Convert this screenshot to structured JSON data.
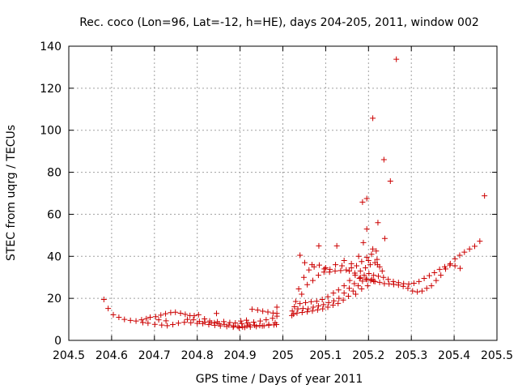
{
  "chart_data": {
    "type": "scatter",
    "title": "Rec. coco (Lon=96, Lat=-12, h=HE), days 204-205, 2011, window 002",
    "xlabel": "GPS time / Days of year 2011",
    "ylabel": "STEC from uqrg / TECUs",
    "xlim": [
      204.5,
      205.5
    ],
    "ylim": [
      0,
      140
    ],
    "xticks": [
      "204.5",
      "204.6",
      "204.7",
      "204.8",
      "204.9",
      "205",
      "205.1",
      "205.2",
      "205.3",
      "205.4",
      "205.5"
    ],
    "yticks": [
      "0",
      "20",
      "40",
      "60",
      "80",
      "100",
      "120",
      "140"
    ],
    "grid": true,
    "marker": "plus",
    "color": "#cc0000",
    "series": [
      {
        "points": [
          [
            204.582,
            19.5
          ],
          [
            204.592,
            15.2
          ],
          [
            204.604,
            12.2
          ],
          [
            204.617,
            11.0
          ],
          [
            204.63,
            10.0
          ],
          [
            204.644,
            9.5
          ],
          [
            204.657,
            9.2
          ],
          [
            204.67,
            9.8
          ],
          [
            204.681,
            10.3
          ],
          [
            204.69,
            11.0
          ],
          [
            204.703,
            11.3
          ],
          [
            204.715,
            12.0
          ],
          [
            204.726,
            12.7
          ],
          [
            204.738,
            13.2
          ],
          [
            204.749,
            13.4
          ],
          [
            204.761,
            12.9
          ],
          [
            204.772,
            12.4
          ],
          [
            204.783,
            11.8
          ],
          [
            204.793,
            11.7
          ],
          [
            204.803,
            12.2
          ],
          [
            204.817,
            10.2
          ],
          [
            204.829,
            9.2
          ],
          [
            204.84,
            8.4
          ],
          [
            204.851,
            7.9
          ],
          [
            204.863,
            7.6
          ],
          [
            204.874,
            7.3
          ],
          [
            204.885,
            6.9
          ],
          [
            204.895,
            6.6
          ],
          [
            204.906,
            6.4
          ],
          [
            204.916,
            6.9
          ],
          [
            204.923,
            7.4
          ],
          [
            204.934,
            7.2
          ],
          [
            204.946,
            7.1
          ],
          [
            204.956,
            7.0
          ],
          [
            204.967,
            7.2
          ],
          [
            204.979,
            7.4
          ],
          [
            204.985,
            7.5
          ],
          [
            204.673,
            8.5
          ],
          [
            204.685,
            8.2
          ],
          [
            204.701,
            7.6
          ],
          [
            204.717,
            7.3
          ],
          [
            204.73,
            7.0
          ],
          [
            204.743,
            7.5
          ],
          [
            204.756,
            8.2
          ],
          [
            204.77,
            8.6
          ],
          [
            204.785,
            8.4
          ],
          [
            204.8,
            8.1
          ],
          [
            204.813,
            8.0
          ],
          [
            204.827,
            7.5
          ],
          [
            204.841,
            7.2
          ],
          [
            204.854,
            6.9
          ],
          [
            204.869,
            6.6
          ],
          [
            204.884,
            6.3
          ],
          [
            204.898,
            6.0
          ],
          [
            204.911,
            6.2
          ],
          [
            204.924,
            6.4
          ],
          [
            204.938,
            6.6
          ],
          [
            204.952,
            6.9
          ],
          [
            204.967,
            7.6
          ],
          [
            204.982,
            8.4
          ],
          [
            204.777,
            10.0
          ],
          [
            204.791,
            9.8
          ],
          [
            204.805,
            9.0
          ],
          [
            204.818,
            8.6
          ],
          [
            204.833,
            8.3
          ],
          [
            204.847,
            8.8
          ],
          [
            204.862,
            8.9
          ],
          [
            204.876,
            8.5
          ],
          [
            204.889,
            8.3
          ],
          [
            204.904,
            8.0
          ],
          [
            204.918,
            8.3
          ],
          [
            204.932,
            8.7
          ],
          [
            204.947,
            9.2
          ],
          [
            204.961,
            9.8
          ],
          [
            204.976,
            10.5
          ],
          [
            204.986,
            11.5
          ],
          [
            204.71,
            9.8
          ],
          [
            204.727,
            9.3
          ],
          [
            204.845,
            12.8
          ],
          [
            204.928,
            14.8
          ],
          [
            204.941,
            14.4
          ],
          [
            204.953,
            13.9
          ],
          [
            204.965,
            13.5
          ],
          [
            204.977,
            13.0
          ],
          [
            204.986,
            12.8
          ],
          [
            204.986,
            15.8
          ],
          [
            204.902,
            9.2
          ],
          [
            204.915,
            9.6
          ],
          [
            205.021,
            11.8
          ],
          [
            205.025,
            12.5
          ],
          [
            205.033,
            13.0
          ],
          [
            205.045,
            13.3
          ],
          [
            205.057,
            13.6
          ],
          [
            205.069,
            14.0
          ],
          [
            205.081,
            14.5
          ],
          [
            205.093,
            15.0
          ],
          [
            205.105,
            15.8
          ],
          [
            205.117,
            16.8
          ],
          [
            205.129,
            17.6
          ],
          [
            205.141,
            19.2
          ],
          [
            205.153,
            21.0
          ],
          [
            205.164,
            23.5
          ],
          [
            205.176,
            26.0
          ],
          [
            205.186,
            28.2
          ],
          [
            205.196,
            29.0
          ],
          [
            205.205,
            28.5
          ],
          [
            205.215,
            28.0
          ],
          [
            205.226,
            27.6
          ],
          [
            205.237,
            27.0
          ],
          [
            205.248,
            26.9
          ],
          [
            205.259,
            26.6
          ],
          [
            205.27,
            26.3
          ],
          [
            205.281,
            25.7
          ],
          [
            205.292,
            24.8
          ],
          [
            205.303,
            23.5
          ],
          [
            205.314,
            23.1
          ],
          [
            205.325,
            23.5
          ],
          [
            205.336,
            24.8
          ],
          [
            205.347,
            26.0
          ],
          [
            205.358,
            28.5
          ],
          [
            205.369,
            31.0
          ],
          [
            205.38,
            34.0
          ],
          [
            205.391,
            36.5
          ],
          [
            205.402,
            38.8
          ],
          [
            205.413,
            40.5
          ],
          [
            205.424,
            42.0
          ],
          [
            205.436,
            43.5
          ],
          [
            205.448,
            44.8
          ],
          [
            205.46,
            47.2
          ],
          [
            205.471,
            68.8
          ],
          [
            205.022,
            14.0
          ],
          [
            205.035,
            15.0
          ],
          [
            205.047,
            15.2
          ],
          [
            205.059,
            15.0
          ],
          [
            205.071,
            15.8
          ],
          [
            205.083,
            16.4
          ],
          [
            205.095,
            17.0
          ],
          [
            205.107,
            18.0
          ],
          [
            205.119,
            18.8
          ],
          [
            205.131,
            20.0
          ],
          [
            205.143,
            22.5
          ],
          [
            205.155,
            24.8
          ],
          [
            205.167,
            27.0
          ],
          [
            205.179,
            29.5
          ],
          [
            205.19,
            31.0
          ],
          [
            205.201,
            31.8
          ],
          [
            205.212,
            31.0
          ],
          [
            205.223,
            30.5
          ],
          [
            205.235,
            30.0
          ],
          [
            205.246,
            29.0
          ],
          [
            205.258,
            28.0
          ],
          [
            205.27,
            27.5
          ],
          [
            205.282,
            27.0
          ],
          [
            205.294,
            26.8
          ],
          [
            205.306,
            27.2
          ],
          [
            205.318,
            28.0
          ],
          [
            205.33,
            29.5
          ],
          [
            205.342,
            30.8
          ],
          [
            205.354,
            32.2
          ],
          [
            205.366,
            33.8
          ],
          [
            205.378,
            35.0
          ],
          [
            205.39,
            35.8
          ],
          [
            205.402,
            35.5
          ],
          [
            205.414,
            34.3
          ],
          [
            205.027,
            16.0
          ],
          [
            205.04,
            17.5
          ],
          [
            205.053,
            18.0
          ],
          [
            205.066,
            18.4
          ],
          [
            205.079,
            18.6
          ],
          [
            205.092,
            19.5
          ],
          [
            205.105,
            20.8
          ],
          [
            205.118,
            22.5
          ],
          [
            205.13,
            24.0
          ],
          [
            205.143,
            26.0
          ],
          [
            205.156,
            28.5
          ],
          [
            205.169,
            31.0
          ],
          [
            205.181,
            33.0
          ],
          [
            205.193,
            34.5
          ],
          [
            205.204,
            36.0
          ],
          [
            205.215,
            37.0
          ],
          [
            205.03,
            18.5
          ],
          [
            205.044,
            22.0
          ],
          [
            205.057,
            26.5
          ],
          [
            205.07,
            28.5
          ],
          [
            205.083,
            31.0
          ],
          [
            205.096,
            32.5
          ],
          [
            205.109,
            32.5
          ],
          [
            205.122,
            33.0
          ],
          [
            205.135,
            33.2
          ],
          [
            205.148,
            33.5
          ],
          [
            205.16,
            34.5
          ],
          [
            205.172,
            35.5
          ],
          [
            205.184,
            37.5
          ],
          [
            205.196,
            39.5
          ],
          [
            205.207,
            41.0
          ],
          [
            205.218,
            42.5
          ],
          [
            205.037,
            24.5
          ],
          [
            205.049,
            30.0
          ],
          [
            205.061,
            33.5
          ],
          [
            205.073,
            35.0
          ],
          [
            205.085,
            35.8
          ],
          [
            205.097,
            34.0
          ],
          [
            205.11,
            33.8
          ],
          [
            205.123,
            36.0
          ],
          [
            205.138,
            35.5
          ],
          [
            205.155,
            33.0
          ],
          [
            205.168,
            32.0
          ],
          [
            205.181,
            30.0
          ],
          [
            205.194,
            29.2
          ],
          [
            205.208,
            29.0
          ],
          [
            205.221,
            36.0
          ],
          [
            205.232,
            33.0
          ],
          [
            205.04,
            40.5
          ],
          [
            205.051,
            37.0
          ],
          [
            205.068,
            36.0
          ],
          [
            205.084,
            45.0
          ],
          [
            205.1,
            34.5
          ],
          [
            205.126,
            45.0
          ],
          [
            205.143,
            38.0
          ],
          [
            205.16,
            36.5
          ],
          [
            205.177,
            40.0
          ],
          [
            205.188,
            46.5
          ],
          [
            205.2,
            38.0
          ],
          [
            205.21,
            43.5
          ],
          [
            205.22,
            38.5
          ],
          [
            205.226,
            35.0
          ],
          [
            205.17,
            22.0
          ],
          [
            205.184,
            24.5
          ],
          [
            205.198,
            26.0
          ],
          [
            205.212,
            28.2
          ],
          [
            205.186,
            65.8
          ],
          [
            205.196,
            67.5
          ],
          [
            205.196,
            53.0
          ],
          [
            205.21,
            105.7
          ],
          [
            205.222,
            56.0
          ],
          [
            205.236,
            86.0
          ],
          [
            205.238,
            48.5
          ],
          [
            205.251,
            75.8
          ],
          [
            205.265,
            133.8
          ]
        ]
      }
    ]
  }
}
